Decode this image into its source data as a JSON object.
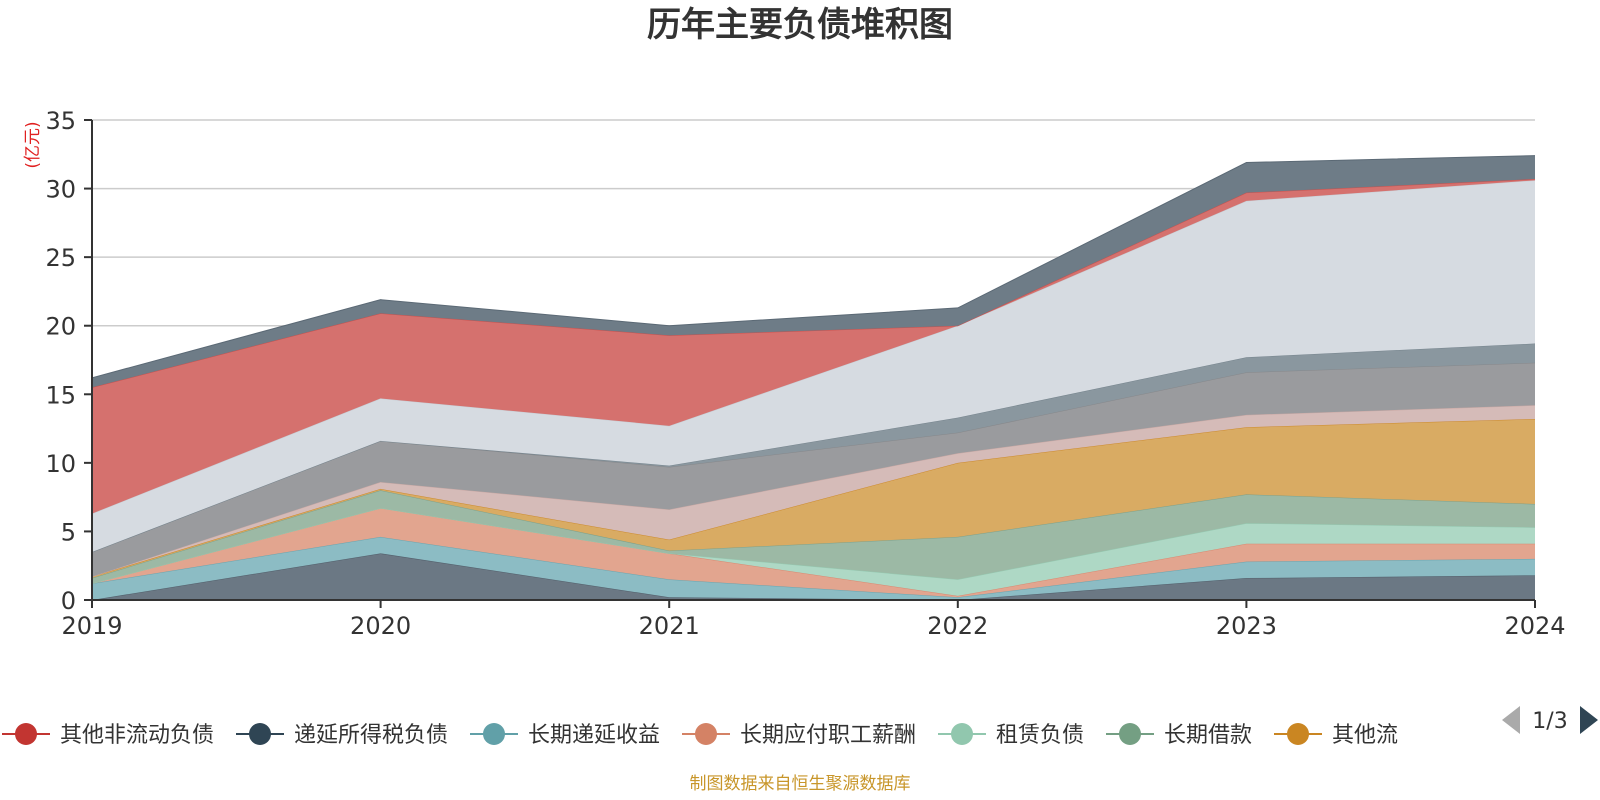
{
  "chart_data": {
    "type": "area",
    "title": "历年主要负债堆积图",
    "ylabel": "(亿元)",
    "xlabel": "",
    "x": [
      "2019",
      "2020",
      "2021",
      "2022",
      "2023",
      "2024"
    ],
    "ylim": [
      0,
      35
    ],
    "yticks": [
      0,
      5,
      10,
      15,
      20,
      25,
      30,
      35
    ],
    "grid": true,
    "legend_position": "bottom",
    "series": [
      {
        "key": "s1",
        "values": [
          0.0,
          3.4,
          0.2,
          0.0,
          1.6,
          1.8
        ],
        "fill": "#6b7884",
        "stroke": "#55626e"
      },
      {
        "key": "s2",
        "values": [
          0.0,
          0.0,
          0.0,
          0.0,
          0.0,
          0.0
        ],
        "fill": "#6b7884",
        "stroke": "#55626e"
      },
      {
        "key": "s3",
        "values": [
          1.2,
          1.2,
          1.3,
          0.2,
          1.2,
          1.2
        ],
        "fill": "#8cbcc4",
        "stroke": "#6aa4ae"
      },
      {
        "key": "s4",
        "values": [
          0.0,
          2.1,
          1.9,
          0.1,
          1.3,
          1.1
        ],
        "fill": "#e2a58f",
        "stroke": "#d98870"
      },
      {
        "key": "s5",
        "values": [
          0.0,
          0.0,
          0.0,
          1.2,
          1.5,
          1.2
        ],
        "fill": "#aed8c5",
        "stroke": "#95c9b1"
      },
      {
        "key": "s6",
        "values": [
          0.4,
          1.3,
          0.2,
          3.1,
          2.1,
          1.7
        ],
        "fill": "#9cb9a5",
        "stroke": "#7ea18a"
      },
      {
        "key": "s7",
        "values": [
          0.1,
          0.1,
          0.8,
          5.4,
          4.9,
          6.2
        ],
        "fill": "#d9ab63",
        "stroke": "#cc8a2d"
      },
      {
        "key": "s8",
        "values": [
          0.0,
          0.5,
          2.2,
          0.7,
          0.9,
          1.0
        ],
        "fill": "#d5bbb8",
        "stroke": "#c9a8a4"
      },
      {
        "key": "s9",
        "values": [
          1.8,
          3.0,
          3.1,
          1.5,
          3.1,
          3.1
        ],
        "fill": "#9a9b9e",
        "stroke": "#87888b"
      },
      {
        "key": "s10",
        "values": [
          0.0,
          0.0,
          0.1,
          1.1,
          1.1,
          1.4
        ],
        "fill": "#8a979f",
        "stroke": "#76848d"
      },
      {
        "key": "s11",
        "values": [
          2.8,
          3.1,
          2.9,
          6.7,
          11.4,
          11.9
        ],
        "fill": "#d6dbe1",
        "stroke": "#c6ccd3"
      },
      {
        "key": "s12",
        "values": [
          9.2,
          6.2,
          6.6,
          0.0,
          0.6,
          0.1
        ],
        "fill": "#d5716e",
        "stroke": "#c9504c"
      },
      {
        "key": "s13",
        "values": [
          0.7,
          1.0,
          0.7,
          1.3,
          2.2,
          1.7
        ],
        "fill": "#6e7c87",
        "stroke": "#5b6975"
      }
    ],
    "legend": [
      {
        "name": "其他非流动负债",
        "color": "#c23531"
      },
      {
        "name": "递延所得税负债",
        "color": "#2f4554"
      },
      {
        "name": "长期递延收益",
        "color": "#61a0a8"
      },
      {
        "name": "长期应付职工薪酬",
        "color": "#d48265"
      },
      {
        "name": "租赁负债",
        "color": "#91c7ae"
      },
      {
        "name": "长期借款",
        "color": "#749f83"
      },
      {
        "name": "其他流",
        "color": "#ca8622"
      }
    ],
    "pager": "1/3",
    "source": "制图数据来自恒生聚源数据库"
  }
}
